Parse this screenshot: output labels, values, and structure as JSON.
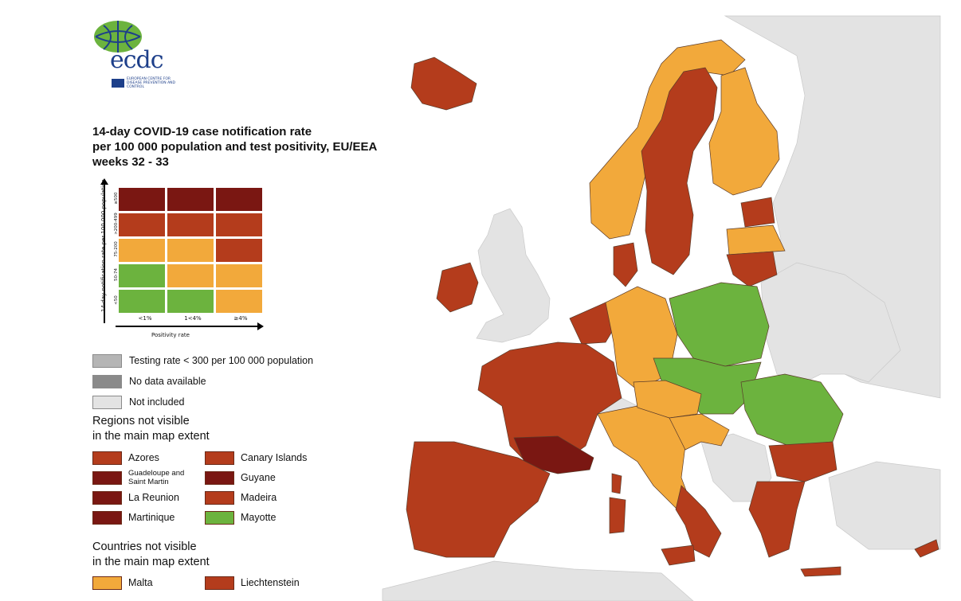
{
  "logo": {
    "wordmark": "ecdc",
    "subtitle": "EUROPEAN CENTRE FOR DISEASE PREVENTION AND CONTROL"
  },
  "title": {
    "line1": "14-day COVID-19 case notification rate",
    "line2": "per 100 000 population and test positivity, EU/EEA",
    "line3": "weeks 32 - 33"
  },
  "colors": {
    "dark_red": "#7a1712",
    "red": "#b43c1c",
    "orange": "#f2a93b",
    "green": "#6cb33e",
    "grey_testing": "#b5b5b5",
    "grey_no_data": "#8a8a8a",
    "not_included": "#e3e3e3",
    "sea": "#ffffff"
  },
  "matrix": {
    "y_axis_title": "14-day notification rate per 100 000 population",
    "x_axis_title": "Positivity rate",
    "y_ticks": [
      "≥500",
      ">200-499",
      "75-200",
      "50-74",
      "<50"
    ],
    "x_ticks": [
      "<1%",
      "1<4%",
      "≥4%"
    ],
    "cells": [
      [
        "dark_red",
        "dark_red",
        "dark_red"
      ],
      [
        "red",
        "red",
        "red"
      ],
      [
        "orange",
        "orange",
        "red"
      ],
      [
        "green",
        "orange",
        "orange"
      ],
      [
        "green",
        "green",
        "orange"
      ]
    ]
  },
  "legend": {
    "testing_rate": "Testing rate < 300 per 100 000 population",
    "no_data": "No data available",
    "not_included": "Not included"
  },
  "regions": {
    "heading_line1": "Regions not visible",
    "heading_line2": "in the main map extent",
    "items": [
      {
        "label": "Azores",
        "color": "red"
      },
      {
        "label": "Canary Islands",
        "color": "red"
      },
      {
        "label": "Guadeloupe and Saint Martin",
        "color": "dark_red"
      },
      {
        "label": "Guyane",
        "color": "dark_red"
      },
      {
        "label": "La Reunion",
        "color": "dark_red"
      },
      {
        "label": "Madeira",
        "color": "red"
      },
      {
        "label": "Martinique",
        "color": "dark_red"
      },
      {
        "label": "Mayotte",
        "color": "green"
      }
    ]
  },
  "countries": {
    "heading_line1": "Countries not visible",
    "heading_line2": "in the main map extent",
    "items": [
      {
        "label": "Malta",
        "color": "orange"
      },
      {
        "label": "Liechtenstein",
        "color": "red"
      }
    ]
  },
  "map_regions": {
    "iceland": "red",
    "norway": "orange",
    "sweden": "red",
    "finland": "orange",
    "estonia": "red",
    "latvia": "orange",
    "lithuania": "red",
    "ireland": "red",
    "denmark": "red",
    "netherlands_belgium": "red",
    "germany": "orange",
    "poland": "green",
    "czechia_slovakia_hungary": "green",
    "romania": "green",
    "bulgaria": "red",
    "greece": "red",
    "france": "red",
    "occitanie": "dark_red",
    "spain_portugal": "red",
    "italy_north": "orange",
    "italy_south": "red",
    "austria_slovenia": "orange",
    "croatia": "orange",
    "cyprus": "red"
  }
}
